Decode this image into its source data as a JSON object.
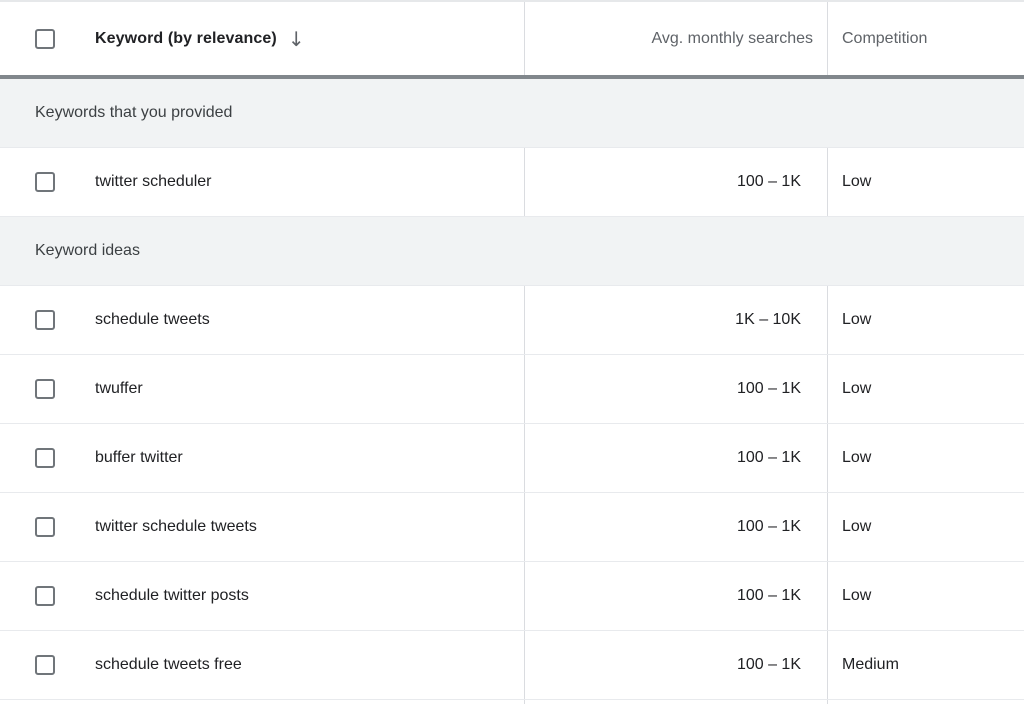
{
  "header": {
    "keyword_label": "Keyword (by relevance)",
    "sort_icon_glyph": "↓",
    "avg_label": "Avg. monthly searches",
    "competition_label": "Competition"
  },
  "sections": [
    {
      "title": "Keywords that you provided",
      "rows": [
        {
          "keyword": "twitter scheduler",
          "avg_monthly_searches": "100 – 1K",
          "competition": "Low"
        }
      ]
    },
    {
      "title": "Keyword ideas",
      "rows": [
        {
          "keyword": "schedule tweets",
          "avg_monthly_searches": "1K – 10K",
          "competition": "Low"
        },
        {
          "keyword": "twuffer",
          "avg_monthly_searches": "100 – 1K",
          "competition": "Low"
        },
        {
          "keyword": "buffer twitter",
          "avg_monthly_searches": "100 – 1K",
          "competition": "Low"
        },
        {
          "keyword": "twitter schedule tweets",
          "avg_monthly_searches": "100 – 1K",
          "competition": "Low"
        },
        {
          "keyword": "schedule twitter posts",
          "avg_monthly_searches": "100 – 1K",
          "competition": "Low"
        },
        {
          "keyword": "schedule tweets free",
          "avg_monthly_searches": "100 – 1K",
          "competition": "Medium"
        }
      ]
    }
  ],
  "colors": {
    "dark_text": "#202124",
    "gray_text": "#5f6368",
    "section_background": "#f1f3f4",
    "header_bottom_bar": "#81878c",
    "row_border": "#e8eaed",
    "column_divider": "#dadce0",
    "checkbox_border": "#70757a"
  }
}
